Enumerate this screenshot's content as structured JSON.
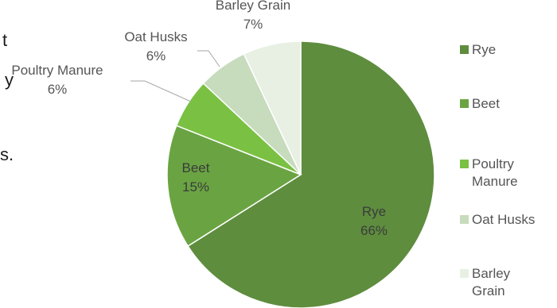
{
  "background_text": [
    "t",
    "y",
    "s."
  ],
  "chart_data": {
    "type": "pie",
    "title": "",
    "start_angle_deg": 0,
    "direction": "clockwise",
    "slices": [
      {
        "label": "Rye",
        "value": 66,
        "display": "66%",
        "color": "#5e8d3e",
        "legend": "Rye"
      },
      {
        "label": "Beet",
        "value": 15,
        "display": "15%",
        "color": "#6aa442",
        "legend": "Beet"
      },
      {
        "label": "Poultry Manure",
        "value": 6,
        "display": "6%",
        "color": "#7ac143",
        "legend": "Poultry\nManure"
      },
      {
        "label": "Oat Husks",
        "value": 6,
        "display": "6%",
        "color": "#c7dbbd",
        "legend": "Oat Husks"
      },
      {
        "label": "Barley Grain",
        "value": 7,
        "display": "7%",
        "color": "#e8f0e3",
        "legend": "Barley\nGrain"
      }
    ],
    "legend_position": "right",
    "data_labels": "category name and percentage"
  }
}
